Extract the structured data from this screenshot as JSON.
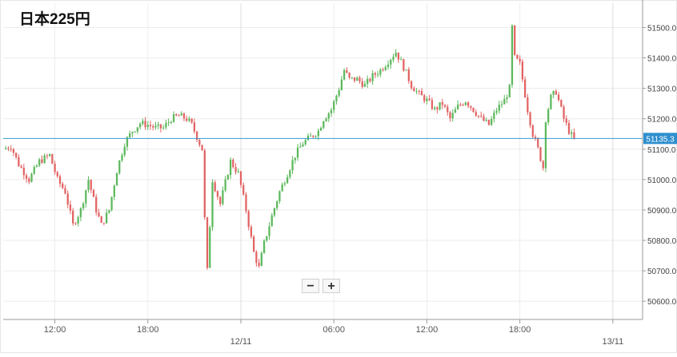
{
  "chart_data": {
    "type": "candlestick",
    "title": "日本225円",
    "ylim": [
      50540,
      51580
    ],
    "y_ticks": [
      50600,
      50700,
      50800,
      50900,
      51000,
      51100,
      51200,
      51300,
      51400,
      51500
    ],
    "y_tick_labels": [
      "50600.0",
      "50700.0",
      "50800.0",
      "50900.0",
      "51000.0",
      "51100.0",
      "51200.0",
      "51300.0",
      "51400.0",
      "51500.0"
    ],
    "x_labels": [
      {
        "label": "12:00",
        "minutes": 720,
        "bold": false
      },
      {
        "label": "18:00",
        "minutes": 1080,
        "bold": false
      },
      {
        "label": "12/11",
        "minutes": 1440,
        "bold": true
      },
      {
        "label": "06:00",
        "minutes": 1800,
        "bold": false
      },
      {
        "label": "12:00",
        "minutes": 2160,
        "bold": false
      },
      {
        "label": "18:00",
        "minutes": 2520,
        "bold": false
      },
      {
        "label": "13/11",
        "minutes": 2880,
        "bold": true
      }
    ],
    "time_range_minutes": [
      520,
      2995
    ],
    "current_price": 51135.3,
    "current_price_label": "51135.3",
    "colors": {
      "up": "#5cb85c",
      "down": "#e26363",
      "price_line": "#3a9bd0",
      "price_label_bg": "#2e8fcf"
    },
    "keypoints": [
      [
        520,
        51100
      ],
      [
        550,
        51110
      ],
      [
        580,
        51050
      ],
      [
        620,
        51000
      ],
      [
        660,
        51060
      ],
      [
        700,
        51080
      ],
      [
        730,
        51000
      ],
      [
        760,
        50960
      ],
      [
        790,
        50850
      ],
      [
        820,
        50900
      ],
      [
        850,
        51000
      ],
      [
        880,
        50900
      ],
      [
        900,
        50850
      ],
      [
        930,
        50900
      ],
      [
        960,
        51030
      ],
      [
        990,
        51120
      ],
      [
        1020,
        51160
      ],
      [
        1050,
        51185
      ],
      [
        1080,
        51180
      ],
      [
        1110,
        51170
      ],
      [
        1140,
        51170
      ],
      [
        1170,
        51200
      ],
      [
        1200,
        51210
      ],
      [
        1230,
        51200
      ],
      [
        1250,
        51180
      ],
      [
        1270,
        51140
      ],
      [
        1290,
        51100
      ],
      [
        1300,
        50870
      ],
      [
        1310,
        50700
      ],
      [
        1330,
        51000
      ],
      [
        1360,
        50920
      ],
      [
        1400,
        51060
      ],
      [
        1430,
        51020
      ],
      [
        1460,
        50900
      ],
      [
        1490,
        50760
      ],
      [
        1510,
        50710
      ],
      [
        1530,
        50790
      ],
      [
        1560,
        50880
      ],
      [
        1590,
        50960
      ],
      [
        1620,
        51020
      ],
      [
        1650,
        51080
      ],
      [
        1680,
        51120
      ],
      [
        1710,
        51140
      ],
      [
        1740,
        51160
      ],
      [
        1760,
        51200
      ],
      [
        1790,
        51230
      ],
      [
        1820,
        51300
      ],
      [
        1840,
        51360
      ],
      [
        1860,
        51330
      ],
      [
        1890,
        51330
      ],
      [
        1920,
        51310
      ],
      [
        1950,
        51340
      ],
      [
        1980,
        51360
      ],
      [
        2010,
        51390
      ],
      [
        2040,
        51420
      ],
      [
        2070,
        51370
      ],
      [
        2100,
        51310
      ],
      [
        2130,
        51280
      ],
      [
        2160,
        51260
      ],
      [
        2190,
        51230
      ],
      [
        2220,
        51250
      ],
      [
        2250,
        51200
      ],
      [
        2280,
        51240
      ],
      [
        2310,
        51260
      ],
      [
        2340,
        51230
      ],
      [
        2370,
        51200
      ],
      [
        2400,
        51180
      ],
      [
        2430,
        51230
      ],
      [
        2460,
        51260
      ],
      [
        2480,
        51300
      ],
      [
        2490,
        51500
      ],
      [
        2500,
        51400
      ],
      [
        2520,
        51380
      ],
      [
        2550,
        51230
      ],
      [
        2570,
        51150
      ],
      [
        2590,
        51100
      ],
      [
        2610,
        51040
      ],
      [
        2620,
        51200
      ],
      [
        2640,
        51270
      ],
      [
        2660,
        51290
      ],
      [
        2690,
        51200
      ],
      [
        2710,
        51160
      ],
      [
        2730,
        51130
      ]
    ]
  },
  "zoom": {
    "minus_label": "−",
    "plus_label": "+"
  }
}
